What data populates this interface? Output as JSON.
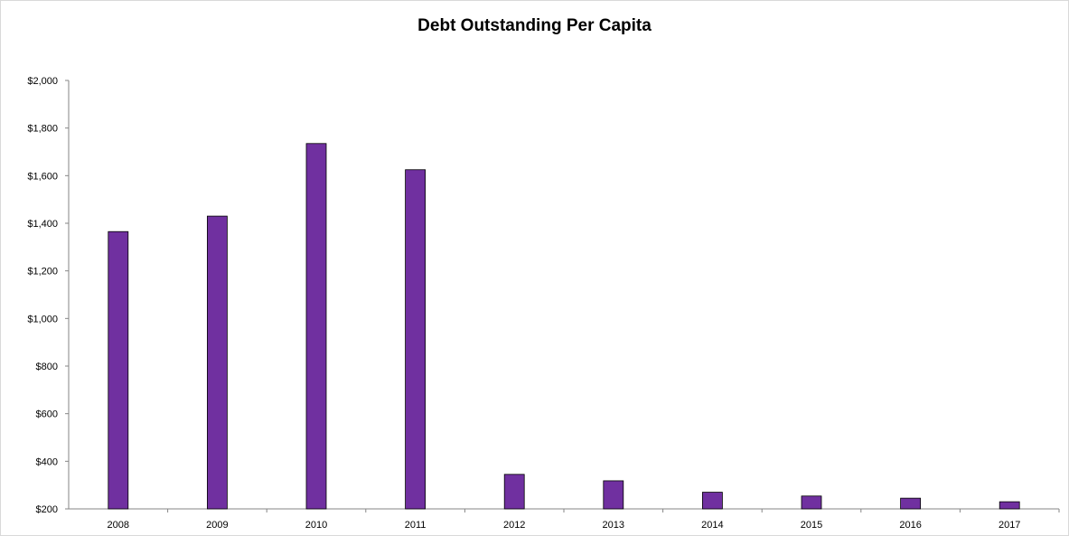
{
  "chart_data": {
    "type": "bar",
    "title": "Debt Outstanding Per Capita",
    "xlabel": "",
    "ylabel": "",
    "categories": [
      "2008",
      "2009",
      "2010",
      "2011",
      "2012",
      "2013",
      "2014",
      "2015",
      "2016",
      "2017"
    ],
    "values": [
      1365,
      1430,
      1735,
      1625,
      345,
      318,
      270,
      254,
      245,
      230
    ],
    "ylim": [
      200,
      2000
    ],
    "yticks": [
      200,
      400,
      600,
      800,
      1000,
      1200,
      1400,
      1600,
      1800,
      2000
    ],
    "ytick_labels": [
      "$200",
      "$400",
      "$600",
      "$800",
      "$1,000",
      "$1,200",
      "$1,400",
      "$1,600",
      "$1,800",
      "$2,000"
    ],
    "grid": false,
    "legend": "none",
    "colors": {
      "bar_fill": "#7030a0",
      "bar_stroke": "#000000",
      "axis": "#868686"
    }
  }
}
